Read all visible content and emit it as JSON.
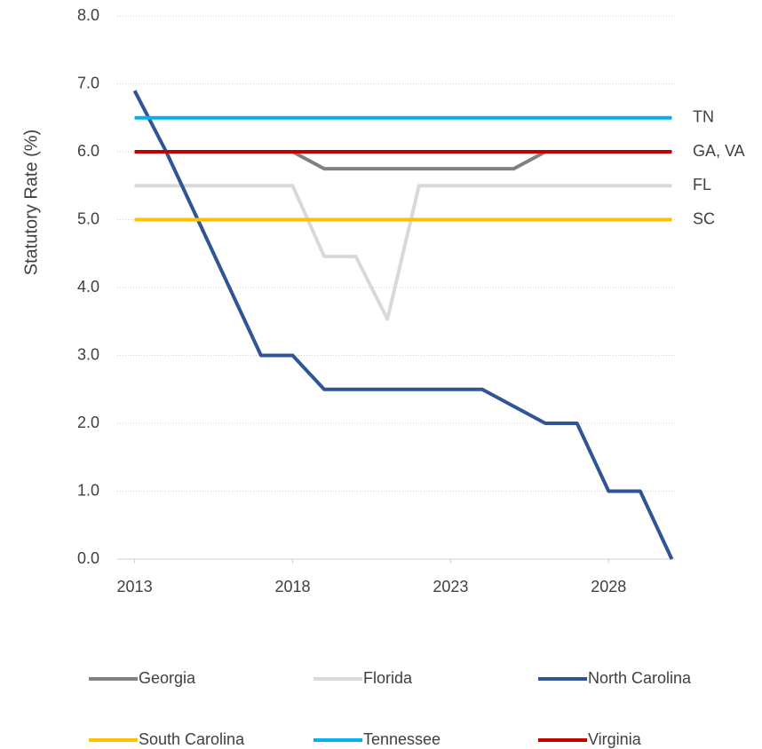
{
  "chart_data": {
    "type": "line",
    "y_label": "Statutory Rate (%)",
    "x": [
      2013,
      2014,
      2015,
      2016,
      2017,
      2018,
      2019,
      2020,
      2021,
      2022,
      2023,
      2024,
      2025,
      2026,
      2027,
      2028,
      2029,
      2030
    ],
    "series": [
      {
        "name": "Georgia",
        "color": "#808080",
        "values": [
          6,
          6,
          6,
          6,
          6,
          6,
          5.75,
          5.75,
          5.75,
          5.75,
          5.75,
          5.75,
          5.75,
          6,
          6,
          6,
          6,
          6
        ]
      },
      {
        "name": "Florida",
        "color": "#d9d9d9",
        "values": [
          5.5,
          5.5,
          5.5,
          5.5,
          5.5,
          5.5,
          4.458,
          4.458,
          3.535,
          5.5,
          5.5,
          5.5,
          5.5,
          5.5,
          5.5,
          5.5,
          5.5,
          5.5
        ]
      },
      {
        "name": "North Carolina",
        "color": "#2f5597",
        "values": [
          6.9,
          6,
          5,
          4,
          3,
          3,
          2.5,
          2.5,
          2.5,
          2.5,
          2.5,
          2.5,
          2.25,
          2,
          2,
          1,
          1,
          0
        ]
      },
      {
        "name": "South Carolina",
        "color": "#ffc000",
        "values": [
          5,
          5,
          5,
          5,
          5,
          5,
          5,
          5,
          5,
          5,
          5,
          5,
          5,
          5,
          5,
          5,
          5,
          5
        ]
      },
      {
        "name": "Tennessee",
        "color": "#00b0f0",
        "values": [
          6.5,
          6.5,
          6.5,
          6.5,
          6.5,
          6.5,
          6.5,
          6.5,
          6.5,
          6.5,
          6.5,
          6.5,
          6.5,
          6.5,
          6.5,
          6.5,
          6.5,
          6.5
        ]
      },
      {
        "name": "Virginia",
        "color": "#c00000",
        "values": [
          6,
          6,
          6,
          6,
          6,
          6,
          6,
          6,
          6,
          6,
          6,
          6,
          6,
          6,
          6,
          6,
          6,
          6
        ]
      }
    ],
    "annotations": [
      {
        "text": "TN",
        "y": 6.5
      },
      {
        "text": "GA, VA",
        "y": 6
      },
      {
        "text": "FL",
        "y": 5.5
      },
      {
        "text": "SC",
        "y": 5
      }
    ],
    "xlim": [
      2012.45,
      2030.1
    ],
    "xticks": [
      2013,
      2018,
      2023,
      2028
    ],
    "ylim": [
      0,
      8
    ],
    "yticks": [
      {
        "value": 0,
        "label": "0.0"
      },
      {
        "value": 1,
        "label": "1.0"
      },
      {
        "value": 2,
        "label": "2.0"
      },
      {
        "value": 3,
        "label": "3.0"
      },
      {
        "value": 4,
        "label": "4.0"
      },
      {
        "value": 5,
        "label": "5.0"
      },
      {
        "value": 6,
        "label": "6.0"
      },
      {
        "value": 7,
        "label": "7.0"
      },
      {
        "value": 8,
        "label": "8.0"
      }
    ],
    "grid": true,
    "legend": "bottom"
  }
}
